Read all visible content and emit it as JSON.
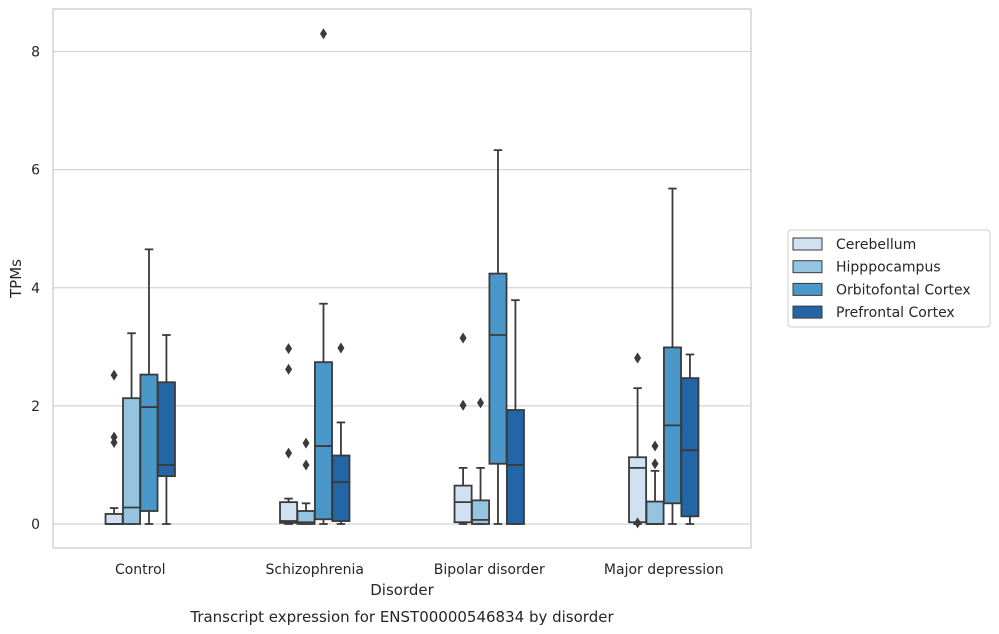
{
  "chart_data": {
    "type": "box",
    "caption": "Transcript expression for ENST00000546834 by disorder",
    "xlabel": "Disorder",
    "ylabel": "TPMs",
    "ylim": [
      -0.4,
      8.7
    ],
    "yticks": [
      0,
      2,
      4,
      6,
      8
    ],
    "grid": "horizontal",
    "legend_placement": "right",
    "categories": [
      "Control",
      "Schizophrenia",
      "Bipolar disorder",
      "Major depression"
    ],
    "series": [
      {
        "name": "Cerebellum",
        "color": "#d0e1f2",
        "boxes": [
          {
            "whislo": 0.0,
            "q1": 0.0,
            "med": 0.0,
            "q3": 0.17,
            "whishi": 0.27,
            "fliers": [
              1.38,
              1.47,
              2.52
            ]
          },
          {
            "whislo": 0.0,
            "q1": 0.02,
            "med": 0.05,
            "q3": 0.37,
            "whishi": 0.43,
            "fliers": [
              1.2,
              2.62,
              2.97
            ]
          },
          {
            "whislo": 0.0,
            "q1": 0.03,
            "med": 0.37,
            "q3": 0.65,
            "whishi": 0.95,
            "fliers": [
              2.01,
              3.15
            ]
          },
          {
            "whislo": 0.0,
            "q1": 0.03,
            "med": 0.95,
            "q3": 1.13,
            "whishi": 2.3,
            "fliers": [
              0.02,
              2.81
            ]
          }
        ]
      },
      {
        "name": "Hipppocampus",
        "color": "#94c4df",
        "boxes": [
          {
            "whislo": 0.0,
            "q1": 0.0,
            "med": 0.28,
            "q3": 2.13,
            "whishi": 3.23,
            "fliers": []
          },
          {
            "whislo": 0.0,
            "q1": 0.0,
            "med": 0.03,
            "q3": 0.22,
            "whishi": 0.35,
            "fliers": [
              1.0,
              1.37
            ]
          },
          {
            "whislo": 0.0,
            "q1": 0.0,
            "med": 0.07,
            "q3": 0.4,
            "whishi": 0.95,
            "fliers": [
              2.05
            ]
          },
          {
            "whislo": 0.0,
            "q1": 0.0,
            "med": 0.0,
            "q3": 0.38,
            "whishi": 0.9,
            "fliers": [
              1.02,
              1.32
            ]
          }
        ]
      },
      {
        "name": "Orbitofontal Cortex",
        "color": "#4a98c9",
        "boxes": [
          {
            "whislo": 0.0,
            "q1": 0.22,
            "med": 1.98,
            "q3": 2.53,
            "whishi": 4.65,
            "fliers": []
          },
          {
            "whislo": 0.0,
            "q1": 0.08,
            "med": 1.32,
            "q3": 2.74,
            "whishi": 3.73,
            "fliers": [
              8.3
            ]
          },
          {
            "whislo": 0.0,
            "q1": 1.02,
            "med": 3.2,
            "q3": 4.24,
            "whishi": 6.33,
            "fliers": []
          },
          {
            "whislo": 0.0,
            "q1": 0.35,
            "med": 1.67,
            "q3": 2.99,
            "whishi": 5.68,
            "fliers": []
          }
        ]
      },
      {
        "name": "Prefrontal Cortex",
        "color": "#2366a8",
        "boxes": [
          {
            "whislo": 0.0,
            "q1": 0.81,
            "med": 1.0,
            "q3": 2.4,
            "whishi": 3.2,
            "fliers": []
          },
          {
            "whislo": 0.0,
            "q1": 0.05,
            "med": 0.71,
            "q3": 1.16,
            "whishi": 1.72,
            "fliers": [
              2.98
            ]
          },
          {
            "whislo": 0.0,
            "q1": 0.0,
            "med": 1.0,
            "q3": 1.93,
            "whishi": 3.79,
            "fliers": []
          },
          {
            "whislo": 0.0,
            "q1": 0.13,
            "med": 1.25,
            "q3": 2.47,
            "whishi": 2.87,
            "fliers": []
          }
        ]
      }
    ]
  }
}
